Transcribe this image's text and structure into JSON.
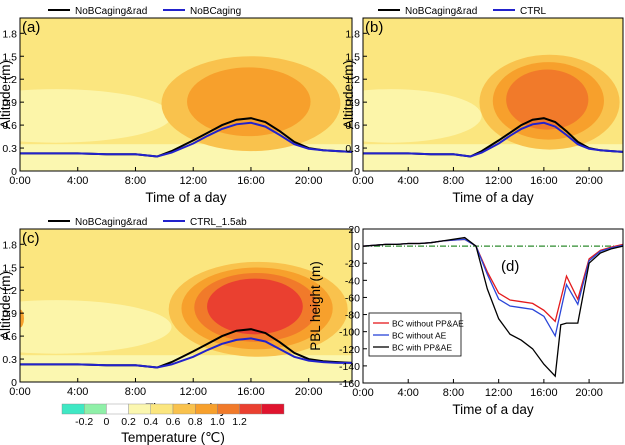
{
  "figure_type": "multi-panel chart",
  "colorbar": {
    "ticks": [
      "-0.2",
      "0",
      "0.2",
      "0.4",
      "0.6",
      "0.8",
      "1.0",
      "1.2"
    ],
    "label": "Temperature (℃)",
    "colors": [
      "#3fe8c4",
      "#8ff0a8",
      "#ffffff",
      "#fbf7b0",
      "#fbe67f",
      "#f9c24d",
      "#f7a02c",
      "#f17a2a",
      "#ea4030",
      "#e0142e"
    ]
  },
  "chart_data": [
    {
      "type": "contour",
      "label": "(a)",
      "xlabel": "Time of a day",
      "ylabel": "Altitude (m)",
      "x_ticks": [
        "0:00",
        "4:00",
        "8:00",
        "12:00",
        "16:00",
        "20:00"
      ],
      "y_ticks": [
        "0",
        "0.3",
        "0.6",
        "0.9",
        "1.2",
        "1.5",
        "1.8"
      ],
      "xlim": [
        0,
        23
      ],
      "ylim": [
        0,
        2.0
      ],
      "legend": [
        "NoBCaging&rad",
        "NoBCaging"
      ],
      "series": [
        {
          "name": "NoBCaging&rad",
          "color": "#000000",
          "x": [
            0,
            2,
            4,
            6,
            8,
            9.5,
            10.5,
            12,
            13,
            14,
            15,
            16,
            17,
            18,
            19,
            20,
            21,
            22,
            23
          ],
          "y": [
            0.23,
            0.23,
            0.23,
            0.22,
            0.22,
            0.19,
            0.26,
            0.4,
            0.5,
            0.6,
            0.67,
            0.69,
            0.64,
            0.52,
            0.38,
            0.3,
            0.27,
            0.26,
            0.25
          ]
        },
        {
          "name": "NoBCaging",
          "color": "#2222cc",
          "x": [
            0,
            2,
            4,
            6,
            8,
            9.5,
            10.5,
            12,
            13,
            14,
            15,
            16,
            17,
            18,
            19,
            20,
            21,
            22,
            23
          ],
          "y": [
            0.23,
            0.23,
            0.23,
            0.22,
            0.22,
            0.19,
            0.24,
            0.36,
            0.46,
            0.55,
            0.61,
            0.63,
            0.58,
            0.47,
            0.35,
            0.29,
            0.27,
            0.26,
            0.25
          ]
        }
      ],
      "contour_levels": [
        0.2,
        0.4,
        0.6,
        0.8
      ],
      "warm_core": {
        "x": 16,
        "y": 0.88,
        "max_level": 0.8
      }
    },
    {
      "type": "contour",
      "label": "(b)",
      "xlabel": "Time of a day",
      "ylabel": "Altitude (m)",
      "x_ticks": [
        "0:00",
        "4:00",
        "8:00",
        "12:00",
        "16:00",
        "20:00"
      ],
      "y_ticks": [
        "0",
        "0.3",
        "0.6",
        "0.9",
        "1.2",
        "1.5",
        "1.8"
      ],
      "xlim": [
        0,
        23
      ],
      "ylim": [
        0,
        2.0
      ],
      "legend": [
        "NoBCaging&rad",
        "CTRL"
      ],
      "series": [
        {
          "name": "NoBCaging&rad",
          "color": "#000000",
          "x": [
            0,
            2,
            4,
            6,
            8,
            9.5,
            10.5,
            12,
            13,
            14,
            15,
            16,
            17,
            18,
            19,
            20,
            21,
            22,
            23
          ],
          "y": [
            0.23,
            0.23,
            0.23,
            0.22,
            0.22,
            0.19,
            0.26,
            0.4,
            0.5,
            0.6,
            0.67,
            0.69,
            0.64,
            0.52,
            0.38,
            0.3,
            0.27,
            0.26,
            0.25
          ]
        },
        {
          "name": "CTRL",
          "color": "#2222cc",
          "x": [
            0,
            2,
            4,
            6,
            8,
            9.5,
            10.5,
            12,
            13,
            14,
            15,
            16,
            17,
            18,
            19,
            20,
            21,
            22,
            23
          ],
          "y": [
            0.23,
            0.23,
            0.23,
            0.22,
            0.22,
            0.19,
            0.24,
            0.36,
            0.46,
            0.55,
            0.61,
            0.63,
            0.58,
            0.47,
            0.35,
            0.29,
            0.27,
            0.26,
            0.25
          ]
        }
      ],
      "contour_levels": [
        0.2,
        0.4,
        0.6,
        0.8,
        1.0
      ],
      "warm_core": {
        "x": 16.5,
        "y": 0.9,
        "max_level": 1.0
      }
    },
    {
      "type": "contour",
      "label": "(c)",
      "xlabel": "Time of a day",
      "ylabel": "Altitude (m)",
      "x_ticks": [
        "0:00",
        "4:00",
        "8:00",
        "12:00",
        "16:00",
        "20:00"
      ],
      "y_ticks": [
        "0",
        "0.3",
        "0.6",
        "0.9",
        "1.2",
        "1.5",
        "1.8"
      ],
      "xlim": [
        0,
        23
      ],
      "ylim": [
        0,
        2.0
      ],
      "legend": [
        "NoBCaging&rad",
        "CTRL_1.5ab"
      ],
      "series": [
        {
          "name": "NoBCaging&rad",
          "color": "#000000",
          "x": [
            0,
            2,
            4,
            6,
            8,
            9.5,
            10.5,
            12,
            13,
            14,
            15,
            16,
            17,
            18,
            19,
            20,
            21,
            22,
            23
          ],
          "y": [
            0.23,
            0.23,
            0.23,
            0.22,
            0.22,
            0.19,
            0.26,
            0.4,
            0.5,
            0.6,
            0.67,
            0.69,
            0.64,
            0.52,
            0.38,
            0.3,
            0.27,
            0.26,
            0.25
          ]
        },
        {
          "name": "CTRL_1.5ab",
          "color": "#2222cc",
          "x": [
            0,
            2,
            4,
            6,
            8,
            9.5,
            10.5,
            12,
            13,
            14,
            15,
            16,
            17,
            18,
            19,
            20,
            21,
            22,
            23
          ],
          "y": [
            0.23,
            0.23,
            0.23,
            0.22,
            0.22,
            0.19,
            0.23,
            0.33,
            0.42,
            0.5,
            0.55,
            0.57,
            0.53,
            0.43,
            0.33,
            0.28,
            0.26,
            0.25,
            0.25
          ]
        }
      ],
      "contour_levels": [
        0.2,
        0.4,
        0.6,
        0.8,
        1.0,
        1.2
      ],
      "warm_core": {
        "x": 16.5,
        "y": 0.95,
        "max_level": 1.2
      }
    },
    {
      "type": "line",
      "label": "(d)",
      "xlabel": "Time of a day",
      "ylabel": "PBL height (m)",
      "x_ticks": [
        "0:00",
        "4:00",
        "8:00",
        "12:00",
        "16:00",
        "20:00"
      ],
      "y_ticks": [
        20,
        0,
        -20,
        -40,
        -60,
        -80,
        -100,
        -120,
        -140,
        -160
      ],
      "xlim": [
        0,
        23
      ],
      "ylim": [
        -160,
        20
      ],
      "legend": [
        "BC without PP&AE",
        "BC without AE",
        "BC with PP&AE"
      ],
      "reference_line": {
        "y": 0,
        "color": "#2e8b2e",
        "style": "dash-dot"
      },
      "series": [
        {
          "name": "BC without PP&AE",
          "color": "#e41a1c",
          "x": [
            0,
            1,
            2,
            3,
            4,
            5,
            6,
            7,
            8,
            9,
            10,
            11,
            12,
            13,
            14,
            15,
            16,
            17,
            18,
            19,
            20,
            21,
            22,
            23
          ],
          "y": [
            0,
            1,
            2,
            2,
            3,
            3,
            4,
            6,
            7,
            8,
            0,
            -30,
            -55,
            -63,
            -65,
            -67,
            -75,
            -88,
            -35,
            -62,
            -15,
            -5,
            -1,
            2
          ]
        },
        {
          "name": "BC without AE",
          "color": "#2a45d8",
          "x": [
            0,
            1,
            2,
            3,
            4,
            5,
            6,
            7,
            8,
            9,
            10,
            11,
            12,
            13,
            14,
            15,
            16,
            17,
            18,
            19,
            20,
            21,
            22,
            23
          ],
          "y": [
            0,
            1,
            2,
            2,
            3,
            3,
            4,
            6,
            7,
            8,
            0,
            -33,
            -62,
            -70,
            -72,
            -74,
            -82,
            -105,
            -45,
            -68,
            -17,
            -6,
            -2,
            1
          ]
        },
        {
          "name": "BC with PP&AE",
          "color": "#000000",
          "x": [
            0,
            1,
            2,
            3,
            4,
            5,
            6,
            7,
            8,
            9,
            10,
            11,
            12,
            13,
            14,
            15,
            16,
            17,
            17.5,
            18,
            19,
            20,
            21,
            22,
            23
          ],
          "y": [
            0,
            1,
            2,
            2,
            3,
            3,
            4,
            6,
            8,
            10,
            0,
            -50,
            -85,
            -103,
            -110,
            -120,
            -138,
            -152,
            -92,
            -90,
            -90,
            -20,
            -8,
            -3,
            0
          ]
        }
      ]
    }
  ]
}
